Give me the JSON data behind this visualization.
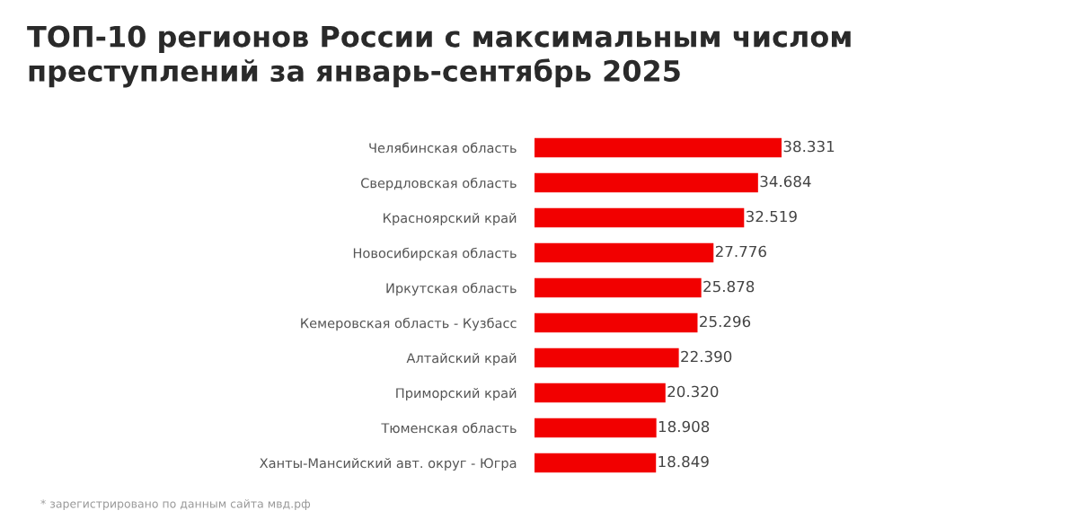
{
  "chart_data": {
    "type": "bar",
    "orientation": "horizontal",
    "title": "ТОП-10 регионов России с максимальным числом\nпреступлений за январь-сентябрь 2025",
    "categories": [
      "Челябинская область",
      "Свердловская область",
      "Красноярский край",
      "Новосибирская область",
      "Иркутская область",
      "Кемеровская область - Кузбасс",
      "Алтайский край",
      "Приморский край",
      "Тюменская область",
      "Ханты-Мансийский авт. округ - Югра"
    ],
    "values": [
      38331,
      34684,
      32519,
      27776,
      25878,
      25296,
      22390,
      20320,
      18908,
      18849
    ],
    "value_labels": [
      "38.331",
      "34.684",
      "32.519",
      "27.776",
      "25.878",
      "25.296",
      "22.390",
      "20.320",
      "18.908",
      "18.849"
    ],
    "color": "#f20000",
    "annotations": [
      "* зарегистрировано по данным сайта мвд.рф"
    ]
  }
}
